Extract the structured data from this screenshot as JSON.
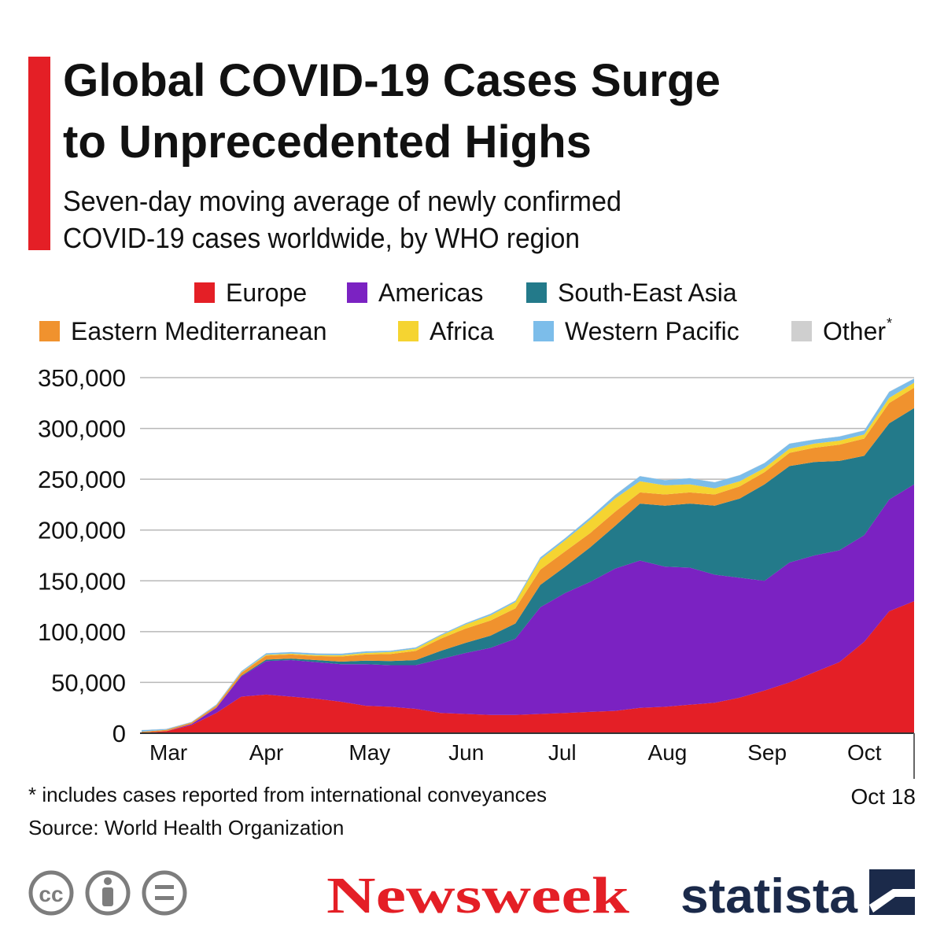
{
  "chart_data": {
    "type": "stacked_area",
    "title": [
      "Global COVID-19 Cases Surge",
      "to Unprecedented Highs"
    ],
    "subtitle": [
      "Seven-day moving average of newly confirmed",
      "COVID-19 cases worldwide, by WHO region"
    ],
    "categories": [
      "Mar",
      null,
      null,
      null,
      "Apr",
      null,
      null,
      null,
      "May",
      null,
      null,
      null,
      "Jun",
      null,
      null,
      null,
      "Jul",
      null,
      null,
      null,
      "Aug",
      null,
      null,
      null,
      "Sep",
      null,
      null,
      null,
      "Oct",
      null,
      null,
      null
    ],
    "end_label": "Oct 18",
    "series": [
      {
        "name": "Europe",
        "color": "#e41f26",
        "values": [
          500,
          2000,
          8000,
          20000,
          36000,
          38000,
          36000,
          34000,
          31000,
          27000,
          26000,
          24000,
          20000,
          19000,
          18000,
          18000,
          19000,
          20000,
          21000,
          22000,
          25000,
          26000,
          28000,
          30000,
          35000,
          42000,
          50000,
          60000,
          70000,
          90000,
          120000,
          130000
        ]
      },
      {
        "name": "Americas",
        "color": "#7b22c2",
        "values": [
          0,
          200,
          1000,
          5000,
          20000,
          33000,
          36000,
          36000,
          37000,
          41000,
          41000,
          43000,
          53000,
          60000,
          66000,
          75000,
          105000,
          118000,
          128000,
          140000,
          145000,
          138000,
          135000,
          126000,
          118000,
          108000,
          118000,
          115000,
          110000,
          105000,
          110000,
          115000
        ]
      },
      {
        "name": "South-East Asia",
        "color": "#237a8a",
        "values": [
          0,
          0,
          0,
          200,
          500,
          1500,
          1500,
          2000,
          2500,
          3500,
          4000,
          5000,
          8000,
          10000,
          12000,
          15000,
          22000,
          26000,
          34000,
          42000,
          56000,
          60000,
          63000,
          68000,
          78000,
          95000,
          95000,
          92000,
          88000,
          78000,
          75000,
          75000
        ]
      },
      {
        "name": "Eastern Mediterranean",
        "color": "#f0922e",
        "values": [
          1000,
          1200,
          1500,
          2000,
          3000,
          4000,
          4000,
          4000,
          5000,
          6000,
          7000,
          9000,
          12000,
          14000,
          15000,
          15000,
          15000,
          15000,
          14000,
          14000,
          11000,
          11000,
          11000,
          11000,
          12000,
          12000,
          13000,
          14000,
          16000,
          17000,
          20000,
          20000
        ]
      },
      {
        "name": "Africa",
        "color": "#f5d431",
        "values": [
          0,
          0,
          0,
          100,
          300,
          700,
          800,
          1000,
          1200,
          1500,
          2000,
          2200,
          3000,
          4000,
          5000,
          6000,
          10000,
          11000,
          13000,
          13000,
          11000,
          9000,
          8000,
          6000,
          5000,
          4000,
          4000,
          4000,
          4000,
          4000,
          5000,
          5000
        ]
      },
      {
        "name": "Western Pacific",
        "color": "#7cbdea",
        "values": [
          1500,
          800,
          500,
          1000,
          1200,
          1500,
          1500,
          1500,
          1500,
          1500,
          1200,
          1200,
          1000,
          1200,
          1500,
          1500,
          2000,
          2000,
          2500,
          3500,
          5000,
          5000,
          6000,
          6000,
          6000,
          5000,
          5000,
          4000,
          4000,
          4000,
          6000,
          4000
        ]
      },
      {
        "name": "Other",
        "color": "#cfcfcf",
        "values": [
          200,
          200,
          200,
          200,
          200,
          200,
          200,
          200,
          200,
          200,
          200,
          200,
          200,
          200,
          200,
          200,
          200,
          200,
          200,
          200,
          200,
          200,
          200,
          200,
          200,
          200,
          200,
          200,
          200,
          200,
          200,
          200
        ]
      }
    ],
    "legend_footnote_marker": "*",
    "ylim": [
      0,
      350000
    ],
    "yticks": [
      0,
      {
        "value": 50000,
        "label": "50,000"
      },
      {
        "value": 100000,
        "label": "100,000"
      },
      {
        "value": 150000,
        "label": "150,000"
      },
      {
        "value": 200000,
        "label": "200,000"
      },
      {
        "value": 250000,
        "label": "250,000"
      },
      {
        "value": 300000,
        "label": "300,000"
      },
      {
        "value": 350000,
        "label": "350,000"
      }
    ],
    "grid": true,
    "footnote": "* includes cases reported from international conveyances",
    "source": "Source: World Health Organization",
    "license_icon_text": "cc",
    "logos": [
      "Newsweek",
      "statista"
    ]
  }
}
